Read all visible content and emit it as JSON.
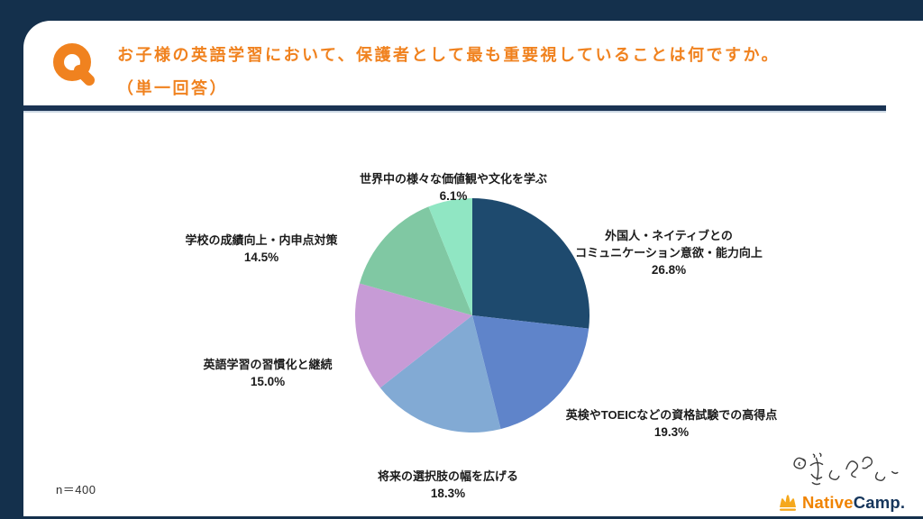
{
  "page": {
    "q_badge": "Q",
    "title": "お子様の英語学習において、保護者として最も重要視していることは何ですか。\n（単一回答）",
    "sample_size": "n＝400",
    "colors": {
      "frame": "#14304c",
      "accent_orange": "#f0821f",
      "divider": "#1a3353"
    }
  },
  "chart_data": {
    "type": "pie",
    "title": "お子様の英語学習において、保護者として最も重要視していることは何ですか。（単一回答）",
    "sample_size": "n＝400",
    "start_angle": "top",
    "direction": "clockwise",
    "legend_position": "none",
    "labels_outside": true,
    "slices": [
      {
        "label": "外国人・ネイティブとの\nコミュニケーション意欲・能力向上",
        "value": 26.8,
        "value_label": "26.8%",
        "color": "#1e4a6e"
      },
      {
        "label": "英検やTOEICなどの資格試験での高得点",
        "value": 19.3,
        "value_label": "19.3%",
        "color": "#5f84ca"
      },
      {
        "label": "将来の選択肢の幅を広げる",
        "value": 18.3,
        "value_label": "18.3%",
        "color": "#82aad4"
      },
      {
        "label": "英語学習の習慣化と継続",
        "value": 15.0,
        "value_label": "15.0%",
        "color": "#c79bd6"
      },
      {
        "label": "学校の成績向上・内申点対策",
        "value": 14.5,
        "value_label": "14.5%",
        "color": "#80c8a3"
      },
      {
        "label": "世界中の様々な価値観や文化を学ぶ",
        "value": 6.1,
        "value_label": "6.1%",
        "color": "#90e6c3"
      }
    ]
  },
  "footer": {
    "brand_native": "Native",
    "brand_camp": "Camp.",
    "crown_color": "#f5a81c",
    "signature_icon": "handwritten-company-signature"
  }
}
